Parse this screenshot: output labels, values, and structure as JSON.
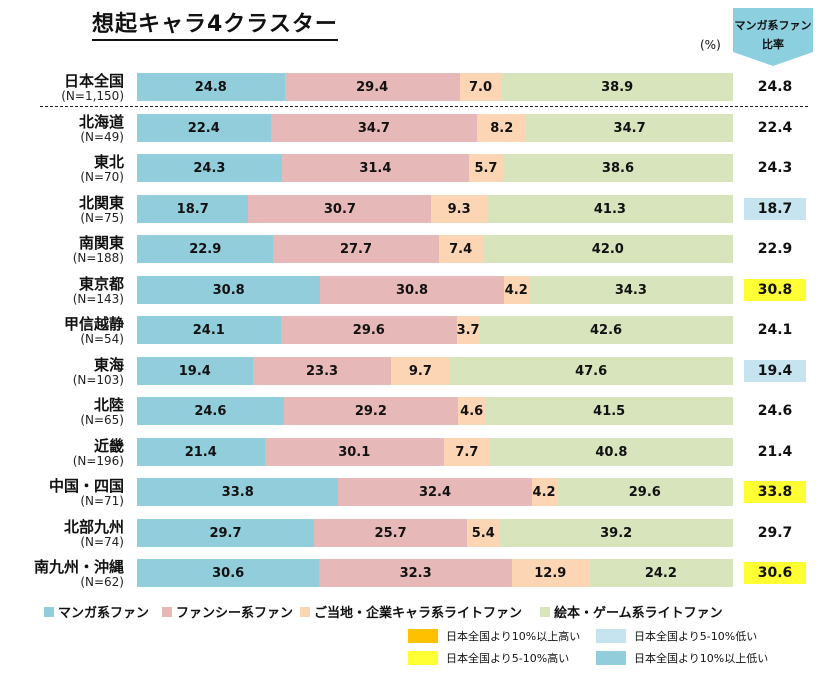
{
  "title": "想起キャラ4クラスター",
  "unit": "(%)",
  "manga_header": {
    "line1": "マンガ系ファン",
    "line2": "比率"
  },
  "chart_data": {
    "type": "stacked-bar-horizontal",
    "title": "想起キャラ4クラスター",
    "unit": "%",
    "xlim": [
      0,
      100
    ],
    "series": [
      {
        "name": "マンガ系ファン",
        "color": "#92cddc"
      },
      {
        "name": "ファンシー系ファン",
        "color": "#e6b8b7"
      },
      {
        "name": "ご当地・企業キャラ系ライトファン",
        "color": "#fcd5b4"
      },
      {
        "name": "絵本・ゲーム系ライトファン",
        "color": "#d8e4bc"
      }
    ],
    "rows": [
      {
        "label": "日本全国",
        "n": "(N=1,150)",
        "values": [
          24.8,
          29.4,
          7.0,
          38.9
        ],
        "labels": [
          "24.8",
          "29.4",
          "7.0",
          "38.9"
        ],
        "ratio": "24.8",
        "highlight": "none"
      },
      {
        "label": "北海道",
        "n": "(N=49)",
        "values": [
          22.4,
          34.7,
          8.2,
          34.7
        ],
        "labels": [
          "22.4",
          "34.7",
          "8.2",
          "34.7"
        ],
        "ratio": "22.4",
        "highlight": "none"
      },
      {
        "label": "東北",
        "n": "(N=70)",
        "values": [
          24.3,
          31.4,
          5.7,
          38.6
        ],
        "labels": [
          "24.3",
          "31.4",
          "5.7",
          "38.6"
        ],
        "ratio": "24.3",
        "highlight": "none"
      },
      {
        "label": "北関東",
        "n": "(N=75)",
        "values": [
          18.7,
          30.7,
          9.3,
          41.3
        ],
        "labels": [
          "18.7",
          "30.7",
          "9.3",
          "41.3"
        ],
        "ratio": "18.7",
        "highlight": "low5"
      },
      {
        "label": "南関東",
        "n": "(N=188)",
        "values": [
          22.9,
          27.7,
          7.4,
          42.0
        ],
        "labels": [
          "22.9",
          "27.7",
          "7.4",
          "42.0"
        ],
        "ratio": "22.9",
        "highlight": "none"
      },
      {
        "label": "東京都",
        "n": "(N=143)",
        "values": [
          30.8,
          30.8,
          4.2,
          34.3
        ],
        "labels": [
          "30.8",
          "30.8",
          "4.2",
          "34.3"
        ],
        "ratio": "30.8",
        "highlight": "high5"
      },
      {
        "label": "甲信越静",
        "n": "(N=54)",
        "values": [
          24.1,
          29.6,
          3.7,
          42.6
        ],
        "labels": [
          "24.1",
          "29.6",
          "3.7",
          "42.6"
        ],
        "ratio": "24.1",
        "highlight": "none"
      },
      {
        "label": "東海",
        "n": "(N=103)",
        "values": [
          19.4,
          23.3,
          9.7,
          47.6
        ],
        "labels": [
          "19.4",
          "23.3",
          "9.7",
          "47.6"
        ],
        "ratio": "19.4",
        "highlight": "low5"
      },
      {
        "label": "北陸",
        "n": "(N=65)",
        "values": [
          24.6,
          29.2,
          4.6,
          41.5
        ],
        "labels": [
          "24.6",
          "29.2",
          "4.6",
          "41.5"
        ],
        "ratio": "24.6",
        "highlight": "none"
      },
      {
        "label": "近畿",
        "n": "(N=196)",
        "values": [
          21.4,
          30.1,
          7.7,
          40.8
        ],
        "labels": [
          "21.4",
          "30.1",
          "7.7",
          "40.8"
        ],
        "ratio": "21.4",
        "highlight": "none"
      },
      {
        "label": "中国・四国",
        "n": "(N=71)",
        "values": [
          33.8,
          32.4,
          4.2,
          29.6
        ],
        "labels": [
          "33.8",
          "32.4",
          "4.2",
          "29.6"
        ],
        "ratio": "33.8",
        "highlight": "high5"
      },
      {
        "label": "北部九州",
        "n": "(N=74)",
        "values": [
          29.7,
          25.7,
          5.4,
          39.2
        ],
        "labels": [
          "29.7",
          "25.7",
          "5.4",
          "39.2"
        ],
        "ratio": "29.7",
        "highlight": "none"
      },
      {
        "label": "南九州・沖縄",
        "n": "(N=62)",
        "values": [
          30.6,
          32.3,
          12.9,
          24.2
        ],
        "labels": [
          "30.6",
          "32.3",
          "12.9",
          "24.2"
        ],
        "ratio": "30.6",
        "highlight": "high5"
      }
    ]
  },
  "highlight_legend": [
    {
      "key": "high10",
      "label": "日本全国より10%以上高い",
      "color": "#ffc000"
    },
    {
      "key": "low5",
      "label": "日本全国より5-10%低い",
      "color": "#c5e4ef"
    },
    {
      "key": "high5",
      "label": "日本全国より5-10%高い",
      "color": "#ffff33"
    },
    {
      "key": "low10",
      "label": "日本全国より10%以上低い",
      "color": "#92cddc"
    }
  ],
  "colors": {
    "header_fill": "#8ccfdf",
    "dash": "#222222"
  }
}
